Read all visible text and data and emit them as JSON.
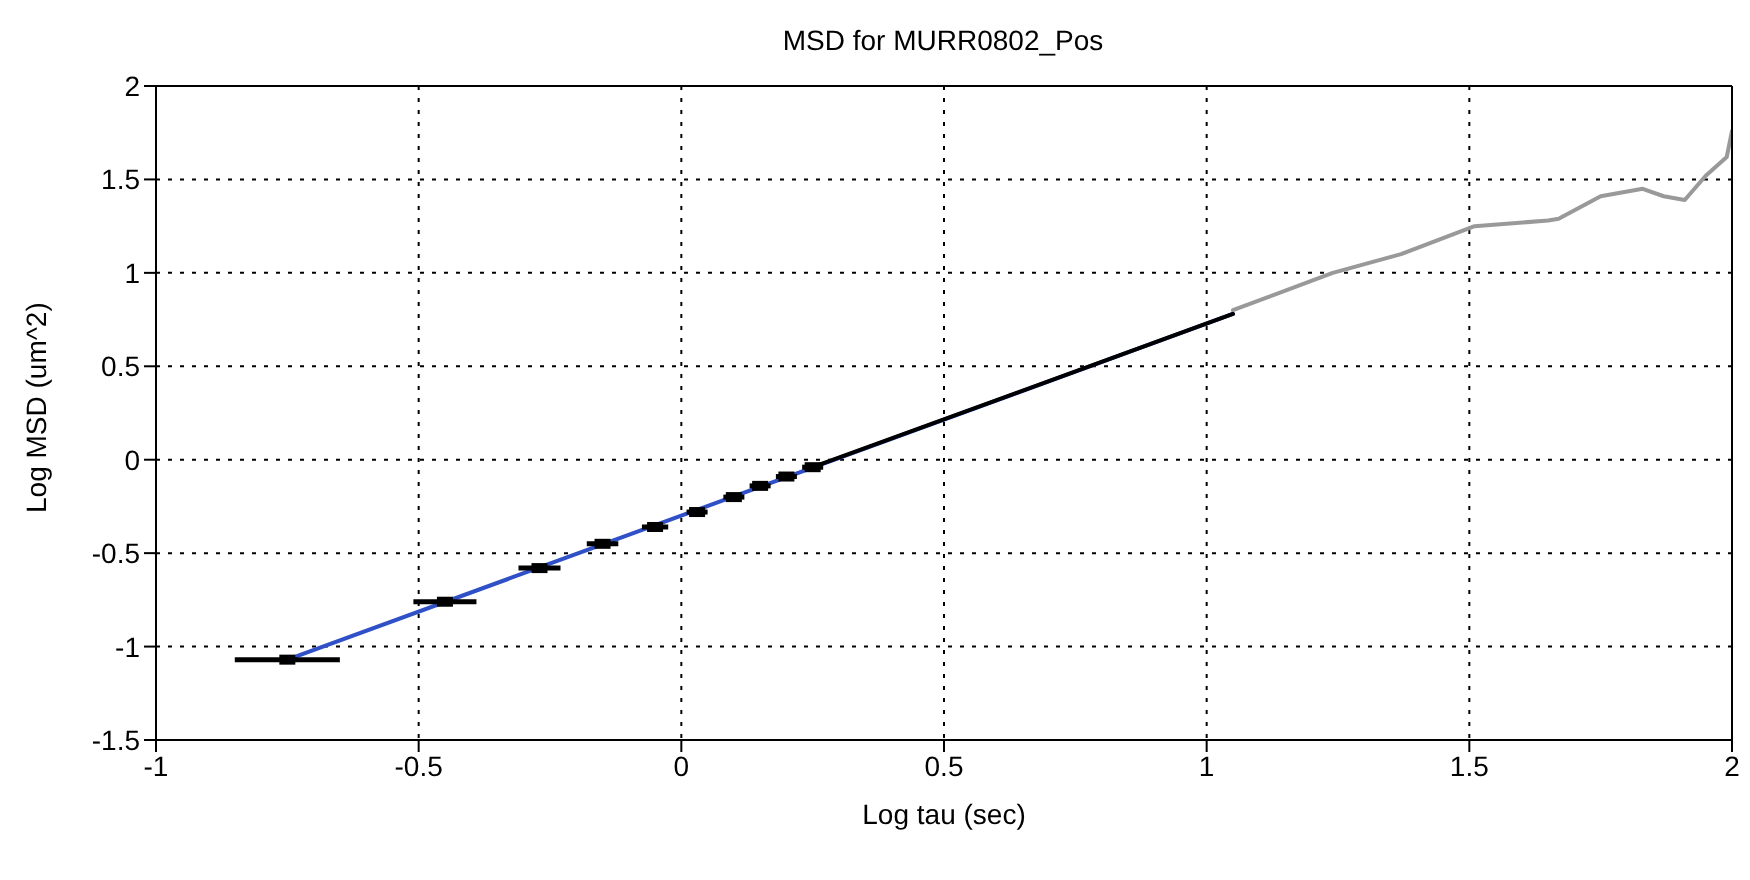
{
  "chart_data": {
    "type": "line",
    "title": "MSD for MURR0802_Pos",
    "xlabel": "Log tau (sec)",
    "ylabel": "Log MSD (um^2)",
    "xlim": [
      -1,
      2
    ],
    "xticks": [
      -1,
      -0.5,
      0,
      0.5,
      1,
      1.5,
      2
    ],
    "ylim": [
      -1.5,
      2
    ],
    "yticks": [
      -1.5,
      -1,
      -0.5,
      0,
      0.5,
      1,
      1.5,
      2
    ],
    "grid": true,
    "series": [
      {
        "type": "line",
        "color": "#3050c8",
        "x": [
          -0.75,
          1.05
        ],
        "values": [
          -1.07,
          0.78
        ]
      },
      {
        "type": "line",
        "color": "#999999",
        "x": [
          1.05,
          1.24,
          1.37,
          1.51,
          1.65,
          1.67,
          1.75,
          1.83,
          1.87,
          1.91,
          1.95,
          1.99,
          2.0
        ],
        "values": [
          0.8,
          1.0,
          1.1,
          1.25,
          1.28,
          1.29,
          1.41,
          1.45,
          1.41,
          1.39,
          1.52,
          1.62,
          1.76
        ]
      },
      {
        "type": "line",
        "color": "#000000",
        "x": [
          0.25,
          1.05
        ],
        "values": [
          -0.04,
          0.78
        ]
      },
      {
        "type": "scatter",
        "color": "#000000",
        "x": [
          -0.75,
          -0.45,
          -0.27,
          -0.15,
          -0.05,
          0.03,
          0.1,
          0.15,
          0.2,
          0.25
        ],
        "values": [
          -1.07,
          -0.76,
          -0.58,
          -0.45,
          -0.36,
          -0.28,
          -0.2,
          -0.14,
          -0.09,
          -0.04
        ],
        "xerrors": [
          0.1,
          0.06,
          0.04,
          0.03,
          0.025,
          0.02,
          0.02,
          0.02,
          0.02,
          0.02
        ]
      }
    ]
  }
}
